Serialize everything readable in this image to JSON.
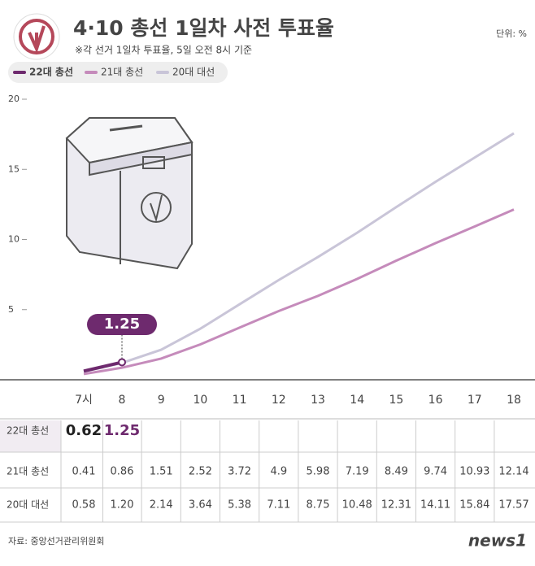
{
  "title": "4·10 총선 1일차 사전 투표율",
  "subtitle": "※각 선거 1일차 투표율, 5일 오전 8시 기준",
  "unit": "단위: %",
  "source": "자료: 중앙선거관리위원회",
  "logo": "news1",
  "chart_data": {
    "type": "line",
    "categories": [
      "7시",
      "8",
      "9",
      "10",
      "11",
      "12",
      "13",
      "14",
      "15",
      "16",
      "17",
      "18"
    ],
    "series": [
      {
        "name": "22대 총선",
        "color": "#6e2a6e",
        "values": [
          0.62,
          1.25,
          null,
          null,
          null,
          null,
          null,
          null,
          null,
          null,
          null,
          null
        ],
        "value_labels": [
          "0.62",
          "1.25",
          null,
          null,
          null,
          null,
          null,
          null,
          null,
          null,
          null,
          null
        ]
      },
      {
        "name": "21대 총선",
        "color": "#c58bbb",
        "values": [
          0.41,
          0.86,
          1.51,
          2.52,
          3.72,
          4.9,
          5.98,
          7.19,
          8.49,
          9.74,
          10.93,
          12.14
        ],
        "value_labels": [
          "0.41",
          "0.86",
          "1.51",
          "2.52",
          "3.72",
          "4.9",
          "5.98",
          "7.19",
          "8.49",
          "9.74",
          "10.93",
          "12.14"
        ]
      },
      {
        "name": "20대 대선",
        "color": "#c9c5d8",
        "values": [
          0.58,
          1.2,
          2.14,
          3.64,
          5.38,
          7.11,
          8.75,
          10.48,
          12.31,
          14.11,
          15.84,
          17.57
        ],
        "value_labels": [
          "0.58",
          "1.20",
          "2.14",
          "3.64",
          "5.38",
          "7.11",
          "8.75",
          "10.48",
          "12.31",
          "14.11",
          "15.84",
          "17.57"
        ]
      }
    ],
    "ylim": [
      0,
      20
    ],
    "yticks": [
      5,
      10,
      15,
      20
    ]
  }
}
